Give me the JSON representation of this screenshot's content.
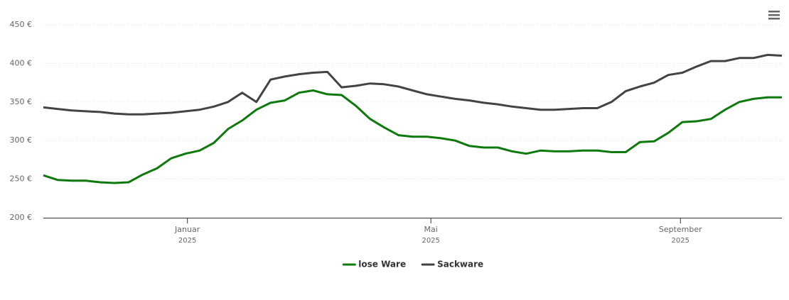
{
  "chart_data": {
    "type": "line",
    "x": [
      "2024-10-22",
      "2024-10-29",
      "2024-11-05",
      "2024-11-12",
      "2024-11-19",
      "2024-11-26",
      "2024-12-03",
      "2024-12-10",
      "2024-12-17",
      "2024-12-24",
      "2024-12-31",
      "2025-01-07",
      "2025-01-14",
      "2025-01-21",
      "2025-01-28",
      "2025-02-04",
      "2025-02-11",
      "2025-02-18",
      "2025-02-25",
      "2025-03-04",
      "2025-03-11",
      "2025-03-18",
      "2025-03-25",
      "2025-04-01",
      "2025-04-08",
      "2025-04-15",
      "2025-04-22",
      "2025-04-29",
      "2025-05-06",
      "2025-05-13",
      "2025-05-20",
      "2025-05-27",
      "2025-06-03",
      "2025-06-10",
      "2025-06-17",
      "2025-06-24",
      "2025-07-01",
      "2025-07-08",
      "2025-07-15",
      "2025-07-22",
      "2025-07-29",
      "2025-08-05",
      "2025-08-12",
      "2025-08-19",
      "2025-08-26",
      "2025-09-02",
      "2025-09-09",
      "2025-09-16",
      "2025-09-23",
      "2025-09-30",
      "2025-10-07",
      "2025-10-14",
      "2025-10-21"
    ],
    "series": [
      {
        "name": "lose Ware",
        "color": "#0e7a0d",
        "values": [
          255,
          249,
          248,
          248,
          246,
          245,
          246,
          256,
          264,
          277,
          283,
          287,
          297,
          315,
          326,
          340,
          349,
          352,
          362,
          365,
          360,
          359,
          345,
          328,
          317,
          307,
          305,
          305,
          303,
          300,
          293,
          291,
          291,
          286,
          283,
          287,
          286,
          286,
          287,
          287,
          285,
          285,
          298,
          299,
          310,
          324,
          325,
          328,
          340,
          350,
          354,
          356,
          356
        ]
      },
      {
        "name": "Sackware",
        "color": "#434343",
        "values": [
          343,
          341,
          339,
          338,
          337,
          335,
          334,
          334,
          335,
          336,
          338,
          340,
          344,
          350,
          362,
          350,
          379,
          383,
          386,
          388,
          389,
          369,
          371,
          374,
          373,
          370,
          365,
          360,
          357,
          354,
          352,
          349,
          347,
          344,
          342,
          340,
          340,
          341,
          342,
          342,
          350,
          364,
          370,
          375,
          385,
          388,
          396,
          403,
          403,
          407,
          407,
          411,
          410
        ]
      }
    ],
    "xlim": [
      "2024-10-22",
      "2025-10-21"
    ],
    "xticks": [
      {
        "value": "2025-01",
        "label": "Januar",
        "year": "2025"
      },
      {
        "value": "2025-05",
        "label": "Mai",
        "year": "2025"
      },
      {
        "value": "2025-09",
        "label": "September",
        "year": "2025"
      }
    ],
    "ylim": [
      200,
      450
    ],
    "yticks": [
      {
        "value": 200,
        "label": "200 €"
      },
      {
        "value": 250,
        "label": "250 €"
      },
      {
        "value": 300,
        "label": "300 €"
      },
      {
        "value": 350,
        "label": "350 €"
      },
      {
        "value": 400,
        "label": "400 €"
      },
      {
        "value": 450,
        "label": "450 €"
      }
    ],
    "grid": true,
    "legend": "bottom"
  }
}
